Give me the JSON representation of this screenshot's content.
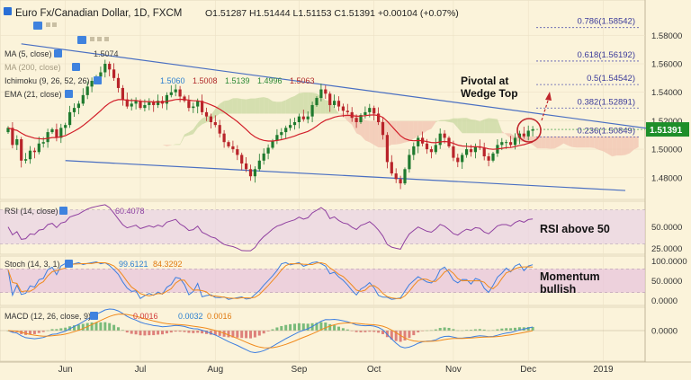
{
  "header": {
    "symbol": "Euro Fx/Canadian Dollar, 1D, FXCM",
    "ohlc": "O1.51287  H1.51444  L1.51153  C1.51391  +0.00104 (+0.07%)"
  },
  "legends": {
    "ma5": "MA (5, close)",
    "ma5_value": "1.5074",
    "ma200": "MA (200, close)",
    "ichimoku": "Ichimoku (9, 26, 52, 26)",
    "ichimoku_values": [
      "1.5060",
      "1.5008",
      "1.5139",
      "1.4996",
      "1.5063"
    ],
    "ema21": "EMA (21, close)",
    "rsi": "RSI (14, close)",
    "rsi_value": "60.4078",
    "stoch": "Stoch (14, 3, 1)",
    "stoch_values": [
      "99.6121",
      "84.3292"
    ],
    "macd": "MACD (12, 26, close, 9)",
    "macd_values": [
      "0.0016",
      "0.0032",
      "0.0016"
    ]
  },
  "annotations": {
    "pivot_line1": "Pivotal at",
    "pivot_line2": "Wedge Top",
    "rsi_note": "RSI above 50",
    "momentum_line1": "Momentum",
    "momentum_line2": "bullish"
  },
  "colors": {
    "background": "#fbf3da",
    "candle_up": "#1f7a2e",
    "candle_down": "#b8242a",
    "ema": "#d21f2a",
    "wedge": "#4a6fc2",
    "cloud_bull": "#c8d8a0",
    "cloud_bear": "#f2c3b0",
    "fib_text": "#3a3a9a",
    "price_badge": "#1e8f2a",
    "rsi_line": "#9040a0",
    "stoch_k": "#3c7ee0",
    "stoch_d": "#f08a1c",
    "macd_line": "#3c7ee0",
    "signal_line": "#f08a1c"
  },
  "chart_data": [
    {
      "panel": "price",
      "type": "candlestick",
      "x_tick_labels": [
        "Jun",
        "Jul",
        "Aug",
        "Sep",
        "Oct",
        "Nov",
        "Dec",
        "2019"
      ],
      "y_ticks": [
        "1.58000",
        "1.56000",
        "1.54000",
        "1.52000",
        "1.50000",
        "1.48000"
      ],
      "ylim": [
        1.466,
        1.601
      ],
      "last_price": "1.51391",
      "close": [
        1.515,
        1.503,
        1.507,
        1.492,
        1.493,
        1.499,
        1.498,
        1.504,
        1.505,
        1.512,
        1.514,
        1.508,
        1.515,
        1.517,
        1.526,
        1.529,
        1.532,
        1.538,
        1.544,
        1.548,
        1.551,
        1.554,
        1.56,
        1.556,
        1.55,
        1.543,
        1.535,
        1.53,
        1.532,
        1.534,
        1.529,
        1.531,
        1.533,
        1.531,
        1.534,
        1.532,
        1.538,
        1.54,
        1.542,
        1.537,
        1.534,
        1.529,
        1.53,
        1.534,
        1.526,
        1.523,
        1.519,
        1.517,
        1.511,
        1.505,
        1.502,
        1.5,
        1.496,
        1.49,
        1.486,
        1.481,
        1.486,
        1.492,
        1.497,
        1.501,
        1.506,
        1.51,
        1.512,
        1.515,
        1.517,
        1.519,
        1.523,
        1.521,
        1.523,
        1.531,
        1.536,
        1.542,
        1.539,
        1.531,
        1.534,
        1.53,
        1.527,
        1.526,
        1.522,
        1.519,
        1.524,
        1.526,
        1.529,
        1.525,
        1.519,
        1.51,
        1.491,
        1.483,
        1.479,
        1.476,
        1.486,
        1.496,
        1.502,
        1.508,
        1.504,
        1.5,
        1.498,
        1.503,
        1.511,
        1.508,
        1.502,
        1.494,
        1.491,
        1.496,
        1.5,
        1.498,
        1.502,
        1.501,
        1.495,
        1.492,
        1.497,
        1.503,
        1.505,
        1.505,
        1.503,
        1.508,
        1.511,
        1.509,
        1.513,
        1.51391
      ],
      "fib_levels": [
        {
          "label": "0.786(1.58542)",
          "value": 1.58542
        },
        {
          "label": "0.618(1.56192)",
          "value": 1.56192
        },
        {
          "label": "0.5(1.54542)",
          "value": 1.54542
        },
        {
          "label": "0.382(1.52891)",
          "value": 1.52891
        },
        {
          "label": "0.236(1.50849)",
          "value": 1.50849
        }
      ],
      "wedge_upper": [
        [
          3,
          1.574
        ],
        [
          149,
          1.513
        ]
      ],
      "wedge_lower": [
        [
          13,
          1.492
        ],
        [
          140,
          1.471
        ]
      ]
    },
    {
      "panel": "rsi",
      "type": "line",
      "y_ticks": [
        "50.0000",
        "25.0000"
      ],
      "ylim": [
        20,
        78
      ],
      "levels": [
        70,
        30
      ],
      "last_value": 60.4078
    },
    {
      "panel": "stochastic",
      "type": "line",
      "y_ticks": [
        "100.0000",
        "50.0000",
        "0.0000"
      ],
      "ylim": [
        -8,
        108
      ],
      "levels": [
        80,
        20
      ],
      "series": [
        {
          "name": "%K",
          "last_value": 99.6121
        },
        {
          "name": "%D",
          "last_value": 84.3292
        }
      ]
    },
    {
      "panel": "macd",
      "type": "line",
      "y_ticks": [
        "0.0000"
      ],
      "ylim": [
        -0.016,
        0.012
      ],
      "series": [
        {
          "name": "MACD",
          "last_value": 0.0032
        },
        {
          "name": "Signal",
          "last_value": 0.0016
        },
        {
          "name": "Histogram",
          "last_value": 0.0016
        }
      ]
    }
  ]
}
